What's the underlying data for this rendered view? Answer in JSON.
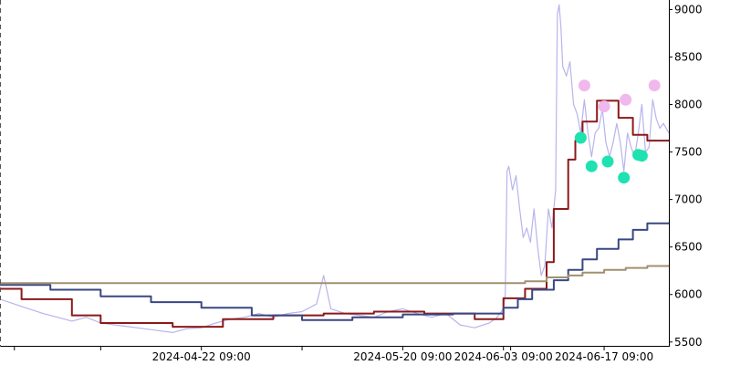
{
  "chart_data": {
    "type": "line",
    "y_axis": {
      "position": "right",
      "ylim": [
        5450,
        9100
      ],
      "ticks": [
        5500,
        6000,
        6500,
        7000,
        7500,
        8000,
        8500,
        9000
      ],
      "tick_labels": [
        "5500",
        "6000",
        "6500",
        "7000",
        "7500",
        "8000",
        "8500",
        "9000"
      ]
    },
    "x_axis": {
      "xlim": [
        "2024-03-25 09:00",
        "2024-06-26 09:00"
      ],
      "labeled_ticks": [
        {
          "x": "2024-04-22 09:00",
          "label": "2024-04-22 09:00"
        },
        {
          "x": "2024-05-20 09:00",
          "label": "2024-05-20 09:00"
        },
        {
          "x": "2024-06-03 09:00",
          "label": "2024-06-03 09:00"
        },
        {
          "x": "2024-06-17 09:00",
          "label": "2024-06-17 09:00"
        }
      ],
      "minor_ticks": [
        "2024-03-27 09:00",
        "2024-04-08 09:00",
        "2024-05-06 09:00",
        "2024-06-04 09:00"
      ]
    },
    "grid": false,
    "series": [
      {
        "key": "price",
        "color": "#b8b4ec",
        "points": [
          [
            "2024-03-25 09:00",
            5950
          ],
          [
            "2024-03-27 09:00",
            5900
          ],
          [
            "2024-03-29 09:00",
            5850
          ],
          [
            "2024-03-31 09:00",
            5800
          ],
          [
            "2024-04-02 09:00",
            5760
          ],
          [
            "2024-04-04 09:00",
            5720
          ],
          [
            "2024-04-06 09:00",
            5760
          ],
          [
            "2024-04-08 09:00",
            5700
          ],
          [
            "2024-04-10 09:00",
            5680
          ],
          [
            "2024-04-12 09:00",
            5660
          ],
          [
            "2024-04-14 09:00",
            5640
          ],
          [
            "2024-04-16 09:00",
            5620
          ],
          [
            "2024-04-18 09:00",
            5600
          ],
          [
            "2024-04-20 09:00",
            5640
          ],
          [
            "2024-04-22 09:00",
            5650
          ],
          [
            "2024-04-24 09:00",
            5700
          ],
          [
            "2024-04-26 09:00",
            5740
          ],
          [
            "2024-04-28 09:00",
            5760
          ],
          [
            "2024-04-30 09:00",
            5800
          ],
          [
            "2024-05-02 09:00",
            5760
          ],
          [
            "2024-05-04 09:00",
            5800
          ],
          [
            "2024-05-06 09:00",
            5820
          ],
          [
            "2024-05-08 09:00",
            5900
          ],
          [
            "2024-05-09 09:00",
            6200
          ],
          [
            "2024-05-10 09:00",
            5850
          ],
          [
            "2024-05-12 09:00",
            5800
          ],
          [
            "2024-05-14 09:00",
            5780
          ],
          [
            "2024-05-16 09:00",
            5760
          ],
          [
            "2024-05-18 09:00",
            5820
          ],
          [
            "2024-05-20 09:00",
            5850
          ],
          [
            "2024-05-22 09:00",
            5800
          ],
          [
            "2024-05-24 09:00",
            5760
          ],
          [
            "2024-05-26 09:00",
            5800
          ],
          [
            "2024-05-28 09:00",
            5680
          ],
          [
            "2024-05-30 09:00",
            5650
          ],
          [
            "2024-06-01 09:00",
            5700
          ],
          [
            "2024-06-02 09:00",
            5750
          ],
          [
            "2024-06-03 09:00",
            5850
          ],
          [
            "2024-06-03 15:00",
            6000
          ],
          [
            "2024-06-03 21:00",
            7300
          ],
          [
            "2024-06-04 03:00",
            7350
          ],
          [
            "2024-06-04 15:00",
            7100
          ],
          [
            "2024-06-05 03:00",
            7250
          ],
          [
            "2024-06-05 15:00",
            6900
          ],
          [
            "2024-06-06 03:00",
            6600
          ],
          [
            "2024-06-06 15:00",
            6700
          ],
          [
            "2024-06-07 03:00",
            6550
          ],
          [
            "2024-06-07 15:00",
            6900
          ],
          [
            "2024-06-08 03:00",
            6500
          ],
          [
            "2024-06-08 15:00",
            6200
          ],
          [
            "2024-06-09 03:00",
            6300
          ],
          [
            "2024-06-09 15:00",
            6900
          ],
          [
            "2024-06-10 03:00",
            6700
          ],
          [
            "2024-06-10 15:00",
            7100
          ],
          [
            "2024-06-10 21:00",
            8950
          ],
          [
            "2024-06-11 03:00",
            9050
          ],
          [
            "2024-06-11 09:00",
            8800
          ],
          [
            "2024-06-11 15:00",
            8400
          ],
          [
            "2024-06-12 03:00",
            8300
          ],
          [
            "2024-06-12 15:00",
            8450
          ],
          [
            "2024-06-13 03:00",
            8000
          ],
          [
            "2024-06-13 15:00",
            7900
          ],
          [
            "2024-06-14 03:00",
            7700
          ],
          [
            "2024-06-14 15:00",
            8050
          ],
          [
            "2024-06-15 03:00",
            7700
          ],
          [
            "2024-06-15 15:00",
            7450
          ],
          [
            "2024-06-16 03:00",
            7700
          ],
          [
            "2024-06-16 15:00",
            7750
          ],
          [
            "2024-06-17 03:00",
            7950
          ],
          [
            "2024-06-17 15:00",
            7600
          ],
          [
            "2024-06-18 03:00",
            7450
          ],
          [
            "2024-06-18 15:00",
            7600
          ],
          [
            "2024-06-19 03:00",
            7800
          ],
          [
            "2024-06-19 15:00",
            7600
          ],
          [
            "2024-06-20 03:00",
            7300
          ],
          [
            "2024-06-20 15:00",
            7700
          ],
          [
            "2024-06-21 03:00",
            7550
          ],
          [
            "2024-06-21 15:00",
            7450
          ],
          [
            "2024-06-22 03:00",
            7700
          ],
          [
            "2024-06-22 15:00",
            8000
          ],
          [
            "2024-06-23 03:00",
            7500
          ],
          [
            "2024-06-23 15:00",
            7550
          ],
          [
            "2024-06-24 03:00",
            8050
          ],
          [
            "2024-06-24 15:00",
            7850
          ],
          [
            "2024-06-25 03:00",
            7750
          ],
          [
            "2024-06-25 15:00",
            7800
          ],
          [
            "2024-06-26 09:00",
            7700
          ]
        ]
      },
      {
        "key": "step_fast",
        "color": "#8b1a1a",
        "step": true,
        "points": [
          [
            "2024-03-25 09:00",
            6060
          ],
          [
            "2024-03-28 09:00",
            5950
          ],
          [
            "2024-04-04 09:00",
            5780
          ],
          [
            "2024-04-08 09:00",
            5700
          ],
          [
            "2024-04-18 09:00",
            5660
          ],
          [
            "2024-04-25 09:00",
            5740
          ],
          [
            "2024-05-02 09:00",
            5780
          ],
          [
            "2024-05-09 09:00",
            5800
          ],
          [
            "2024-05-16 09:00",
            5820
          ],
          [
            "2024-05-23 09:00",
            5800
          ],
          [
            "2024-05-30 09:00",
            5740
          ],
          [
            "2024-06-03 09:00",
            5960
          ],
          [
            "2024-06-06 09:00",
            6060
          ],
          [
            "2024-06-07 09:00",
            6060
          ],
          [
            "2024-06-09 09:00",
            6340
          ],
          [
            "2024-06-10 09:00",
            6900
          ],
          [
            "2024-06-12 09:00",
            7420
          ],
          [
            "2024-06-13 09:00",
            7620
          ],
          [
            "2024-06-14 09:00",
            7820
          ],
          [
            "2024-06-16 09:00",
            8040
          ],
          [
            "2024-06-19 09:00",
            7860
          ],
          [
            "2024-06-21 09:00",
            7680
          ],
          [
            "2024-06-23 09:00",
            7620
          ],
          [
            "2024-06-26 09:00",
            7620
          ]
        ]
      },
      {
        "key": "step_mid",
        "color": "#3a4782",
        "step": true,
        "points": [
          [
            "2024-03-25 09:00",
            6100
          ],
          [
            "2024-04-01 09:00",
            6050
          ],
          [
            "2024-04-08 09:00",
            5980
          ],
          [
            "2024-04-15 09:00",
            5920
          ],
          [
            "2024-04-22 09:00",
            5860
          ],
          [
            "2024-04-29 09:00",
            5780
          ],
          [
            "2024-05-06 09:00",
            5730
          ],
          [
            "2024-05-13 09:00",
            5760
          ],
          [
            "2024-05-20 09:00",
            5790
          ],
          [
            "2024-05-27 09:00",
            5800
          ],
          [
            "2024-06-03 09:00",
            5860
          ],
          [
            "2024-06-05 09:00",
            5950
          ],
          [
            "2024-06-07 09:00",
            6050
          ],
          [
            "2024-06-10 09:00",
            6150
          ],
          [
            "2024-06-12 09:00",
            6260
          ],
          [
            "2024-06-14 09:00",
            6370
          ],
          [
            "2024-06-16 09:00",
            6480
          ],
          [
            "2024-06-19 09:00",
            6580
          ],
          [
            "2024-06-21 09:00",
            6680
          ],
          [
            "2024-06-23 09:00",
            6750
          ],
          [
            "2024-06-26 09:00",
            6760
          ]
        ]
      },
      {
        "key": "step_slow",
        "color": "#a09070",
        "step": true,
        "points": [
          [
            "2024-03-25 09:00",
            6120
          ],
          [
            "2024-06-03 09:00",
            6120
          ],
          [
            "2024-06-06 09:00",
            6140
          ],
          [
            "2024-06-09 09:00",
            6180
          ],
          [
            "2024-06-12 09:00",
            6200
          ],
          [
            "2024-06-14 09:00",
            6230
          ],
          [
            "2024-06-17 09:00",
            6260
          ],
          [
            "2024-06-20 09:00",
            6280
          ],
          [
            "2024-06-23 09:00",
            6300
          ],
          [
            "2024-06-26 09:00",
            6310
          ]
        ]
      }
    ],
    "markers_high": {
      "color": "#f0b8ec",
      "points": [
        [
          "2024-06-14 15:00",
          8200
        ],
        [
          "2024-06-17 09:00",
          7980
        ],
        [
          "2024-06-20 09:00",
          8050
        ],
        [
          "2024-06-24 09:00",
          8200
        ]
      ]
    },
    "markers_low": {
      "color": "#1ee2b0",
      "points": [
        [
          "2024-06-14 03:00",
          7650
        ],
        [
          "2024-06-15 15:00",
          7350
        ],
        [
          "2024-06-17 21:00",
          7400
        ],
        [
          "2024-06-20 03:00",
          7230
        ],
        [
          "2024-06-22 03:00",
          7470
        ],
        [
          "2024-06-22 15:00",
          7460
        ]
      ]
    },
    "crosshair_x": "2024-03-25 09:00"
  }
}
